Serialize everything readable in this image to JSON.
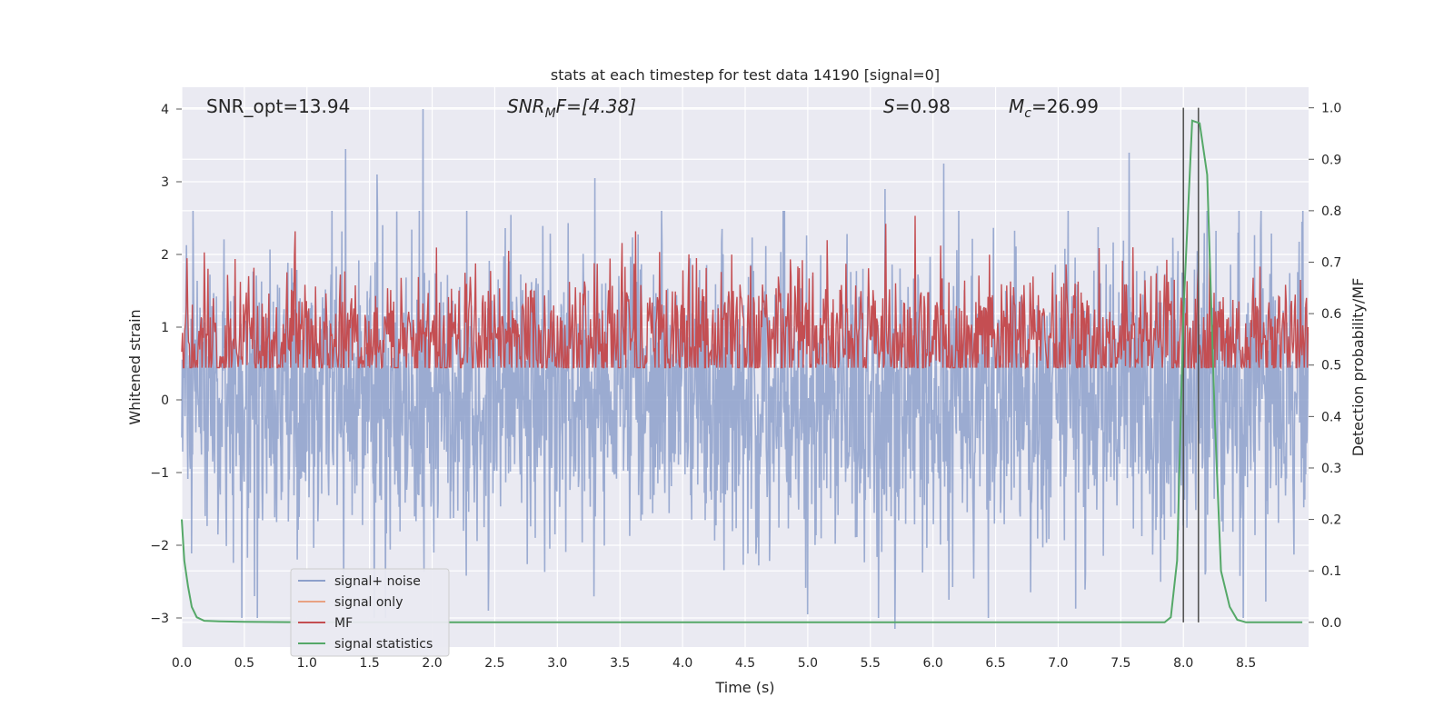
{
  "chart_data": {
    "type": "line",
    "title": "stats at each timestep for test data 14190 [signal=0]",
    "xlabel": "Time (s)",
    "ylabel_left": "Whitened strain",
    "ylabel_right": "Detection probability/MF",
    "xlim": [
      0.0,
      9.0
    ],
    "ylim_left": [
      -3.4,
      4.3
    ],
    "ylim_right": [
      -0.048,
      1.04
    ],
    "xticks": [
      0.0,
      0.5,
      1.0,
      1.5,
      2.0,
      2.5,
      3.0,
      3.5,
      4.0,
      4.5,
      5.0,
      5.5,
      6.0,
      6.5,
      7.0,
      7.5,
      8.0,
      8.5
    ],
    "xtick_labels": [
      "0.0",
      "0.5",
      "1.0",
      "1.5",
      "2.0",
      "2.5",
      "3.0",
      "3.5",
      "4.0",
      "4.5",
      "5.0",
      "5.5",
      "6.0",
      "6.5",
      "7.0",
      "7.5",
      "8.0",
      "8.5"
    ],
    "yticks_left": [
      -3,
      -2,
      -1,
      0,
      1,
      2,
      3,
      4
    ],
    "ytick_labels_left": [
      "−3",
      "−2",
      "−1",
      "0",
      "1",
      "2",
      "3",
      "4"
    ],
    "yticks_right": [
      0.0,
      0.1,
      0.2,
      0.3,
      0.4,
      0.5,
      0.6,
      0.7,
      0.8,
      0.9,
      1.0
    ],
    "ytick_labels_right": [
      "0.0",
      "0.1",
      "0.2",
      "0.3",
      "0.4",
      "0.5",
      "0.6",
      "0.7",
      "0.8",
      "0.9",
      "1.0"
    ],
    "annotations": {
      "snr_opt": "SNR_opt=13.94",
      "snr_mf_main": "SNR",
      "snr_mf_sub": "M",
      "snr_mf_rest": "F=[4.38]",
      "s_main": "S",
      "s_rest": "=0.98",
      "mc_main": "M",
      "mc_sub": "c",
      "mc_rest": "=26.99"
    },
    "vlines": [
      8.0,
      8.12
    ],
    "legend": {
      "placement": "lower-left",
      "entries": [
        {
          "label": "signal+ noise",
          "color": "#8da0cb"
        },
        {
          "label": "signal only",
          "color": "#e8a283"
        },
        {
          "label": "MF",
          "color": "#c44e52"
        },
        {
          "label": "signal statistics",
          "color": "#55a868"
        }
      ]
    },
    "series": [
      {
        "name": "signal+ noise",
        "axis": "left",
        "color": "#8da0cb",
        "kind": "noise",
        "samples": 2400,
        "std": 1.0,
        "spikes": [
          {
            "x": 1.31,
            "y": 3.45
          },
          {
            "x": 1.93,
            "y": 4.0
          },
          {
            "x": 1.56,
            "y": 3.1
          },
          {
            "x": 3.3,
            "y": 3.05
          },
          {
            "x": 5.62,
            "y": 2.9
          },
          {
            "x": 6.09,
            "y": 3.25
          },
          {
            "x": 7.57,
            "y": 3.4
          },
          {
            "x": 8.95,
            "y": 2.45
          },
          {
            "x": 5.7,
            "y": -3.15
          },
          {
            "x": 5.0,
            "y": -2.95
          },
          {
            "x": 2.45,
            "y": -2.9
          },
          {
            "x": 0.58,
            "y": -2.7
          },
          {
            "x": 6.13,
            "y": -2.75
          },
          {
            "x": 8.12,
            "y": 1.95
          }
        ]
      },
      {
        "name": "MF",
        "axis": "right",
        "color": "#c44e52",
        "kind": "noise",
        "samples": 1500,
        "center": 0.55,
        "spread": 0.07
      },
      {
        "name": "signal statistics",
        "axis": "right",
        "color": "#55a868",
        "kind": "line",
        "x": [
          0.0,
          0.02,
          0.05,
          0.08,
          0.12,
          0.18,
          0.3,
          0.5,
          1.0,
          2.0,
          4.0,
          6.0,
          7.5,
          7.85,
          7.9,
          7.95,
          8.0,
          8.07,
          8.13,
          8.19,
          8.25,
          8.3,
          8.37,
          8.43,
          8.5,
          8.7,
          8.95
        ],
        "y": [
          0.2,
          0.12,
          0.07,
          0.03,
          0.01,
          0.003,
          0.002,
          0.001,
          0.0,
          0.0,
          0.0,
          0.0,
          0.0,
          0.0,
          0.01,
          0.12,
          0.6,
          0.975,
          0.97,
          0.87,
          0.4,
          0.1,
          0.03,
          0.005,
          0.0,
          0.0,
          0.0
        ]
      }
    ]
  }
}
